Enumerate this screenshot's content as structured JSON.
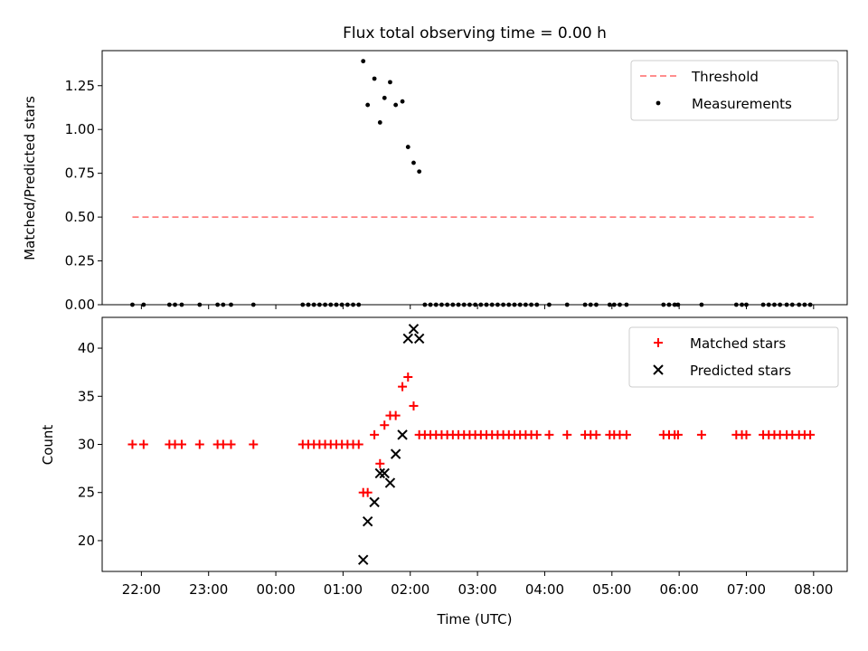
{
  "chart_data": [
    {
      "type": "scatter",
      "title": "Flux total observing time = 0.00 h",
      "xlabel": "",
      "ylabel": "Matched/Predicted stars",
      "ylim": [
        0,
        1.45
      ],
      "yticks": [
        "0.00",
        "0.25",
        "0.50",
        "0.75",
        "1.00",
        "1.25"
      ],
      "ytick_values": [
        0,
        0.25,
        0.5,
        0.75,
        1.0,
        1.25
      ],
      "legend_position": "top-right",
      "threshold": {
        "name": "Threshold",
        "y": 0.5,
        "x_start": "21:52",
        "x_end": "08:00",
        "color": "#ff7f7f"
      },
      "series": [
        {
          "name": "Measurements",
          "color": "#000000",
          "points": [
            [
              "21:52",
              0
            ],
            [
              "22:02",
              0
            ],
            [
              "22:25",
              0
            ],
            [
              "22:30",
              0
            ],
            [
              "22:36",
              0
            ],
            [
              "22:52",
              0
            ],
            [
              "23:08",
              0
            ],
            [
              "23:13",
              0
            ],
            [
              "23:20",
              0
            ],
            [
              "23:40",
              0
            ],
            [
              "00:24",
              0
            ],
            [
              "00:29",
              0
            ],
            [
              "00:34",
              0
            ],
            [
              "00:39",
              0
            ],
            [
              "00:44",
              0
            ],
            [
              "00:49",
              0
            ],
            [
              "00:54",
              0
            ],
            [
              "00:59",
              0
            ],
            [
              "01:04",
              0
            ],
            [
              "01:09",
              0
            ],
            [
              "01:14",
              0
            ],
            [
              "01:18",
              1.39
            ],
            [
              "01:22",
              1.14
            ],
            [
              "01:28",
              1.29
            ],
            [
              "01:33",
              1.04
            ],
            [
              "01:37",
              1.18
            ],
            [
              "01:42",
              1.27
            ],
            [
              "01:47",
              1.14
            ],
            [
              "01:53",
              1.16
            ],
            [
              "01:58",
              0.9
            ],
            [
              "02:03",
              0.81
            ],
            [
              "02:08",
              0.76
            ],
            [
              "02:13",
              0
            ],
            [
              "02:18",
              0
            ],
            [
              "02:23",
              0
            ],
            [
              "02:28",
              0
            ],
            [
              "02:33",
              0
            ],
            [
              "02:38",
              0
            ],
            [
              "02:43",
              0
            ],
            [
              "02:48",
              0
            ],
            [
              "02:53",
              0
            ],
            [
              "02:58",
              0
            ],
            [
              "03:03",
              0
            ],
            [
              "03:08",
              0
            ],
            [
              "03:13",
              0
            ],
            [
              "03:18",
              0
            ],
            [
              "03:23",
              0
            ],
            [
              "03:28",
              0
            ],
            [
              "03:33",
              0
            ],
            [
              "03:38",
              0
            ],
            [
              "03:43",
              0
            ],
            [
              "03:48",
              0
            ],
            [
              "03:53",
              0
            ],
            [
              "04:04",
              0
            ],
            [
              "04:20",
              0
            ],
            [
              "04:36",
              0
            ],
            [
              "04:41",
              0
            ],
            [
              "04:46",
              0
            ],
            [
              "04:58",
              0
            ],
            [
              "05:02",
              0
            ],
            [
              "05:07",
              0
            ],
            [
              "05:13",
              0
            ],
            [
              "05:46",
              0
            ],
            [
              "05:51",
              0
            ],
            [
              "05:56",
              0
            ],
            [
              "05:59",
              0
            ],
            [
              "06:20",
              0
            ],
            [
              "06:51",
              0
            ],
            [
              "06:56",
              0
            ],
            [
              "07:00",
              0
            ],
            [
              "07:15",
              0
            ],
            [
              "07:20",
              0
            ],
            [
              "07:25",
              0
            ],
            [
              "07:30",
              0
            ],
            [
              "07:36",
              0
            ],
            [
              "07:41",
              0
            ],
            [
              "07:47",
              0
            ],
            [
              "07:52",
              0
            ],
            [
              "07:57",
              0
            ]
          ]
        }
      ]
    },
    {
      "type": "scatter",
      "title": "",
      "xlabel": "Time (UTC)",
      "ylabel": "Count",
      "ylim": [
        16.8,
        43.2
      ],
      "xlim": [
        "21:25",
        "08:30"
      ],
      "xticks": [
        "22:00",
        "23:00",
        "00:00",
        "01:00",
        "02:00",
        "03:00",
        "04:00",
        "05:00",
        "06:00",
        "07:00",
        "08:00"
      ],
      "yticks": [
        "20",
        "25",
        "30",
        "35",
        "40"
      ],
      "ytick_values": [
        20,
        25,
        30,
        35,
        40
      ],
      "legend_position": "top-right",
      "series": [
        {
          "name": "Matched stars",
          "color": "#ff0000",
          "points": [
            [
              "21:52",
              30
            ],
            [
              "22:02",
              30
            ],
            [
              "22:25",
              30
            ],
            [
              "22:30",
              30
            ],
            [
              "22:36",
              30
            ],
            [
              "22:52",
              30
            ],
            [
              "23:08",
              30
            ],
            [
              "23:13",
              30
            ],
            [
              "23:20",
              30
            ],
            [
              "23:40",
              30
            ],
            [
              "00:24",
              30
            ],
            [
              "00:29",
              30
            ],
            [
              "00:34",
              30
            ],
            [
              "00:39",
              30
            ],
            [
              "00:44",
              30
            ],
            [
              "00:49",
              30
            ],
            [
              "00:54",
              30
            ],
            [
              "00:59",
              30
            ],
            [
              "01:04",
              30
            ],
            [
              "01:09",
              30
            ],
            [
              "01:14",
              30
            ],
            [
              "01:18",
              25
            ],
            [
              "01:22",
              25
            ],
            [
              "01:28",
              31
            ],
            [
              "01:33",
              28
            ],
            [
              "01:37",
              32
            ],
            [
              "01:42",
              33
            ],
            [
              "01:47",
              33
            ],
            [
              "01:53",
              36
            ],
            [
              "01:58",
              37
            ],
            [
              "02:03",
              34
            ],
            [
              "02:08",
              31
            ],
            [
              "02:13",
              31
            ],
            [
              "02:18",
              31
            ],
            [
              "02:23",
              31
            ],
            [
              "02:28",
              31
            ],
            [
              "02:33",
              31
            ],
            [
              "02:38",
              31
            ],
            [
              "02:43",
              31
            ],
            [
              "02:48",
              31
            ],
            [
              "02:53",
              31
            ],
            [
              "02:58",
              31
            ],
            [
              "03:03",
              31
            ],
            [
              "03:08",
              31
            ],
            [
              "03:13",
              31
            ],
            [
              "03:18",
              31
            ],
            [
              "03:23",
              31
            ],
            [
              "03:28",
              31
            ],
            [
              "03:33",
              31
            ],
            [
              "03:38",
              31
            ],
            [
              "03:43",
              31
            ],
            [
              "03:48",
              31
            ],
            [
              "03:53",
              31
            ],
            [
              "04:04",
              31
            ],
            [
              "04:20",
              31
            ],
            [
              "04:36",
              31
            ],
            [
              "04:41",
              31
            ],
            [
              "04:46",
              31
            ],
            [
              "04:58",
              31
            ],
            [
              "05:02",
              31
            ],
            [
              "05:07",
              31
            ],
            [
              "05:13",
              31
            ],
            [
              "05:46",
              31
            ],
            [
              "05:51",
              31
            ],
            [
              "05:56",
              31
            ],
            [
              "05:59",
              31
            ],
            [
              "06:20",
              31
            ],
            [
              "06:51",
              31
            ],
            [
              "06:56",
              31
            ],
            [
              "07:00",
              31
            ],
            [
              "07:15",
              31
            ],
            [
              "07:20",
              31
            ],
            [
              "07:25",
              31
            ],
            [
              "07:30",
              31
            ],
            [
              "07:36",
              31
            ],
            [
              "07:41",
              31
            ],
            [
              "07:47",
              31
            ],
            [
              "07:52",
              31
            ],
            [
              "07:57",
              31
            ]
          ]
        },
        {
          "name": "Predicted stars",
          "color": "#000000",
          "points": [
            [
              "01:18",
              18
            ],
            [
              "01:22",
              22
            ],
            [
              "01:28",
              24
            ],
            [
              "01:33",
              27
            ],
            [
              "01:37",
              27
            ],
            [
              "01:42",
              26
            ],
            [
              "01:47",
              29
            ],
            [
              "01:53",
              31
            ],
            [
              "01:58",
              41
            ],
            [
              "02:03",
              42
            ],
            [
              "02:08",
              41
            ]
          ]
        }
      ]
    }
  ]
}
